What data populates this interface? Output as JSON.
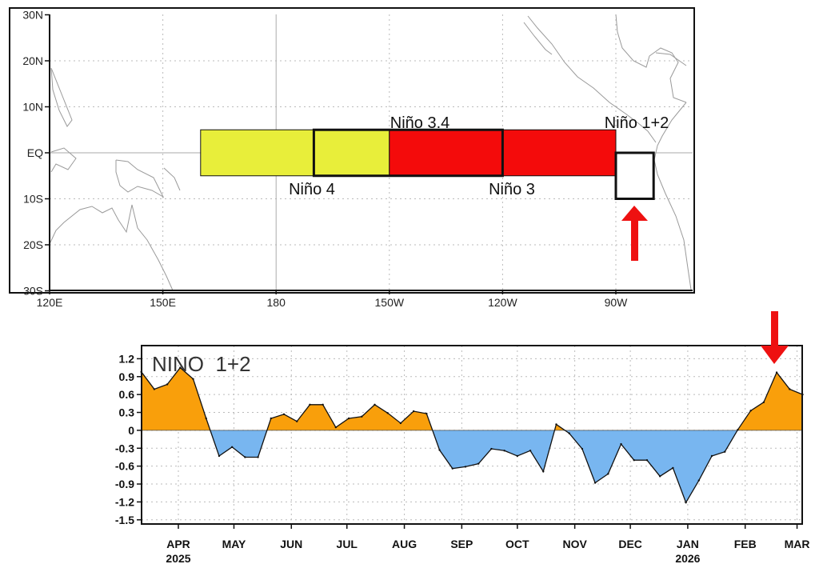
{
  "map": {
    "lat_labels": [
      "30N",
      "20N",
      "10N",
      "EQ",
      "10S",
      "20S",
      "30S"
    ],
    "lat_values": [
      30,
      20,
      10,
      0,
      -10,
      -20,
      -30
    ],
    "lon_labels": [
      "120E",
      "150E",
      "180",
      "150W",
      "120W",
      "90W"
    ],
    "lon_values": [
      120,
      150,
      180,
      210,
      240,
      270
    ],
    "lon_range": [
      120,
      290
    ],
    "lat_range": [
      -30,
      30
    ],
    "regions": [
      {
        "name": "Niño 4",
        "lon": [
          160,
          210
        ],
        "lat": [
          -5,
          5
        ],
        "color": "#e8ee3a"
      },
      {
        "name": "Niño 3",
        "lon": [
          210,
          270
        ],
        "lat": [
          -5,
          5
        ],
        "color": "#f40b0b"
      },
      {
        "name": "Niño 3.4",
        "lon": [
          190,
          240
        ],
        "lat": [
          -5,
          5
        ],
        "color": "none"
      },
      {
        "name": "Niño 1+2",
        "lon": [
          270,
          280
        ],
        "lat": [
          -10,
          0
        ],
        "color": "#ffffff"
      }
    ],
    "highlight_arrow_color": "#ee1111"
  },
  "chart_data": {
    "type": "area",
    "title": "NINO  1+2",
    "xlabel": "",
    "ylabel": "",
    "ylim": [
      -1.57,
      1.42
    ],
    "xlim": [
      "2025-03-12",
      "2026-03-06"
    ],
    "grid": true,
    "y_ticks": [
      "1.2",
      "0.9",
      "0.6",
      "0.3",
      "0",
      "-0.3",
      "-0.6",
      "-0.9",
      "-1.2",
      "-1.5"
    ],
    "y_tick_values": [
      1.2,
      0.9,
      0.6,
      0.3,
      0,
      -0.3,
      -0.6,
      -0.9,
      -1.2,
      -1.5
    ],
    "x_ticks": [
      {
        "label": "APR",
        "year": "2025",
        "date": "2025-04-01"
      },
      {
        "label": "MAY",
        "year": "",
        "date": "2025-05-01"
      },
      {
        "label": "JUN",
        "year": "",
        "date": "2025-06-01"
      },
      {
        "label": "JUL",
        "year": "",
        "date": "2025-07-01"
      },
      {
        "label": "AUG",
        "year": "",
        "date": "2025-08-01"
      },
      {
        "label": "SEP",
        "year": "",
        "date": "2025-09-01"
      },
      {
        "label": "OCT",
        "year": "",
        "date": "2025-10-01"
      },
      {
        "label": "NOV",
        "year": "",
        "date": "2025-11-01"
      },
      {
        "label": "DEC",
        "year": "",
        "date": "2025-12-01"
      },
      {
        "label": "JAN",
        "year": "2026",
        "date": "2026-01-01"
      },
      {
        "label": "FEB",
        "year": "",
        "date": "2026-02-01"
      },
      {
        "label": "MAR",
        "year": "",
        "date": "2026-03-01"
      }
    ],
    "positive_color": "#f99f0b",
    "negative_color": "#78b6f0",
    "x": [
      "2025-03-12",
      "2025-03-19",
      "2025-03-26",
      "2025-04-02",
      "2025-04-09",
      "2025-04-16",
      "2025-04-23",
      "2025-04-30",
      "2025-05-07",
      "2025-05-14",
      "2025-05-21",
      "2025-05-28",
      "2025-06-04",
      "2025-06-11",
      "2025-06-18",
      "2025-06-25",
      "2025-07-02",
      "2025-07-09",
      "2025-07-16",
      "2025-07-23",
      "2025-07-30",
      "2025-08-06",
      "2025-08-13",
      "2025-08-20",
      "2025-08-27",
      "2025-09-03",
      "2025-09-10",
      "2025-09-17",
      "2025-09-24",
      "2025-10-01",
      "2025-10-08",
      "2025-10-15",
      "2025-10-22",
      "2025-10-29",
      "2025-11-05",
      "2025-11-12",
      "2025-11-19",
      "2025-11-26",
      "2025-12-03",
      "2025-12-10",
      "2025-12-17",
      "2025-12-24",
      "2025-12-31",
      "2026-01-07",
      "2026-01-14",
      "2026-01-21",
      "2026-01-28",
      "2026-02-04",
      "2026-02-11",
      "2026-02-18",
      "2026-02-25",
      "2026-03-04"
    ],
    "values": [
      0.98,
      0.69,
      0.77,
      1.05,
      0.86,
      0.2,
      -0.43,
      -0.28,
      -0.45,
      -0.45,
      0.2,
      0.27,
      0.15,
      0.43,
      0.43,
      0.05,
      0.2,
      0.23,
      0.43,
      0.29,
      0.12,
      0.32,
      0.28,
      -0.33,
      -0.64,
      -0.61,
      -0.56,
      -0.31,
      -0.34,
      -0.43,
      -0.34,
      -0.69,
      0.1,
      -0.05,
      -0.31,
      -0.88,
      -0.73,
      -0.23,
      -0.5,
      -0.5,
      -0.77,
      -0.63,
      -1.21,
      -0.84,
      -0.43,
      -0.36,
      0.01,
      0.33,
      0.47,
      0.97,
      0.69,
      0.6
    ],
    "highlight_arrow_date": "2026-02-18"
  }
}
